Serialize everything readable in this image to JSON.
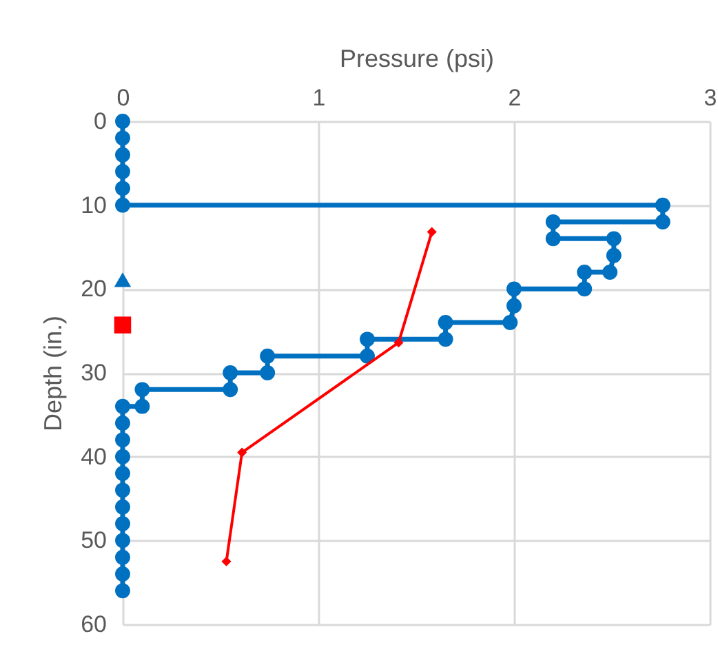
{
  "chart_data": {
    "type": "line",
    "xlabel": "Pressure (psi)",
    "ylabel": "Depth (in.)",
    "xlim": [
      0,
      3
    ],
    "xticks": [
      0,
      1,
      2,
      3
    ],
    "ylim": [
      60,
      0
    ],
    "yticks": [
      0,
      10,
      20,
      30,
      40,
      50,
      60
    ],
    "grid": true,
    "series": [
      {
        "type": "line",
        "color": "#0070c0",
        "marker": "circle",
        "x": [
          0,
          0,
          0,
          0,
          0,
          0,
          2.76,
          2.76,
          2.2,
          2.2,
          2.51,
          2.51,
          2.49,
          2.36,
          2.36,
          2.0,
          2.0,
          1.98,
          1.65,
          1.65,
          1.25,
          1.25,
          0.74,
          0.74,
          0.55,
          0.55,
          0.1,
          0.1,
          0,
          0,
          0,
          0,
          0,
          0,
          0,
          0,
          0,
          0,
          0,
          0
        ],
        "values": [
          0,
          2,
          4,
          6,
          8,
          10,
          10,
          12,
          12,
          14,
          14,
          16,
          18,
          18,
          20,
          20,
          22,
          24,
          24,
          26,
          26,
          28,
          28,
          30,
          30,
          32,
          32,
          34,
          34,
          36,
          38,
          40,
          42,
          44,
          46,
          48,
          50,
          52,
          54,
          56
        ]
      },
      {
        "type": "line",
        "color": "#ff0000",
        "marker": "diamond",
        "x": [
          1.58,
          1.41,
          0.61,
          0.53
        ],
        "values": [
          13.2,
          26.4,
          39.5,
          52.5
        ]
      },
      {
        "type": "scatter",
        "color": "#0070c0",
        "marker": "triangle",
        "x": [
          0
        ],
        "values": [
          18.9
        ]
      },
      {
        "type": "scatter",
        "color": "#ff0000",
        "marker": "square",
        "x": [
          0
        ],
        "values": [
          24.3
        ]
      }
    ]
  }
}
